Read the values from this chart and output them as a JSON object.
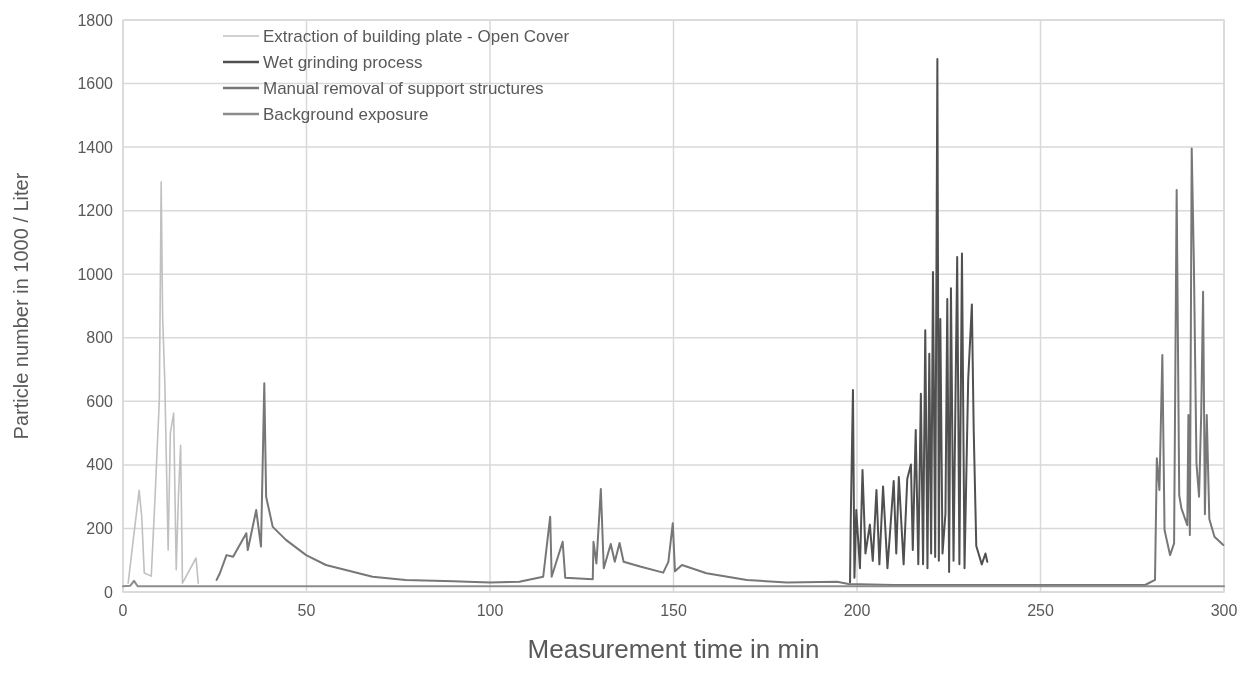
{
  "chart_data": {
    "type": "line",
    "xlabel": "Measurement time in min",
    "ylabel": "Particle number in 1000 / Liter",
    "xlim": [
      0,
      300
    ],
    "xticks": [
      0,
      50,
      100,
      150,
      200,
      250,
      300
    ],
    "ylim": [
      0,
      1800
    ],
    "yticks": [
      0,
      200,
      400,
      600,
      800,
      1000,
      1200,
      1400,
      1600,
      1800
    ],
    "grid": true,
    "legend": "top left",
    "line_style": "solid",
    "marker": "none",
    "series": [
      {
        "name": "Extraction of building plate - Open Cover",
        "color": "#c0c0c0",
        "x": [
          1.4,
          4.4,
          5.1,
          5.8,
          7.7,
          8.7,
          9.9,
          10.4,
          10.8,
          11.4,
          12.3,
          12.9,
          13.8,
          14.5,
          15.1,
          15.7,
          16.2,
          19.9,
          20.5
        ],
        "values": [
          28,
          320,
          237,
          60,
          50,
          290,
          604,
          1291,
          866,
          657,
          132,
          500,
          563,
          70,
          300,
          462,
          28,
          107,
          28
        ]
      },
      {
        "name": "Wet grinding process",
        "color": "#505050",
        "x": [
          198.1,
          198.3,
          198.9,
          199.3,
          199.8,
          200.8,
          201.5,
          202.3,
          203.5,
          204.3,
          205.3,
          206.1,
          207.1,
          208.3,
          210.0,
          210.7,
          211.4,
          212.7,
          213.7,
          214.7,
          215.2,
          216.0,
          216.7,
          217.4,
          218.0,
          218.6,
          219.2,
          219.7,
          220.2,
          220.7,
          221.3,
          221.9,
          222.3,
          222.7,
          223.3,
          224.1,
          224.6,
          225.1,
          225.6,
          226.3,
          227.3,
          227.9,
          228.6,
          229.3,
          230.3,
          231.3,
          231.8,
          232.5,
          234.0,
          235.0,
          235.5
        ],
        "values": [
          30,
          230,
          636,
          45,
          258,
          75,
          384,
          121,
          212,
          98,
          321,
          87,
          332,
          75,
          349,
          121,
          362,
          87,
          356,
          401,
          132,
          510,
          87,
          624,
          87,
          824,
          75,
          750,
          121,
          1007,
          110,
          1677,
          98,
          859,
          121,
          247,
          922,
          63,
          956,
          98,
          1054,
          87,
          1065,
          75,
          670,
          905,
          510,
          145,
          87,
          121,
          95
        ]
      },
      {
        "name": "Manual removal of support structures",
        "color": "#777777",
        "x": [
          25.5,
          26.4,
          28.2,
          30,
          33.6,
          34,
          36.3,
          37.6,
          38.5,
          39,
          40.8,
          44.4,
          49.9,
          55.3,
          62.6,
          68,
          77,
          90,
          100,
          108,
          114.5,
          116.4,
          116.8,
          119.8,
          120.5,
          128,
          128.2,
          129,
          130.2,
          131,
          132.9,
          134,
          135.3,
          136.4,
          140.9,
          147.2,
          148.6,
          149.8,
          150.4,
          152.3,
          159,
          170,
          180.9,
          194.6,
          197.7,
          210,
          230,
          250,
          265,
          278.5,
          281.2,
          281.7,
          282.4,
          283.2,
          283.8,
          285.3,
          286.4,
          287.1,
          287.8,
          288.4,
          290,
          290.3,
          290.7,
          291.2,
          291.8,
          292.5,
          293.2,
          293.8,
          294.3,
          294.8,
          295.3,
          296,
          297.4,
          299.8
        ],
        "values": [
          38,
          59,
          116,
          111,
          185,
          132,
          258,
          143,
          657,
          300,
          205,
          164,
          116,
          85,
          64,
          48,
          38,
          34,
          30,
          32,
          48,
          237,
          48,
          158,
          45,
          40,
          158,
          90,
          324,
          75,
          151,
          95,
          154,
          95,
          80,
          61,
          95,
          216,
          65,
          85,
          59,
          38,
          30,
          32,
          25,
          22,
          22,
          22,
          22,
          22,
          38,
          421,
          321,
          746,
          195,
          116,
          153,
          1265,
          305,
          263,
          210,
          557,
          179,
          1396,
          1029,
          405,
          300,
          563,
          945,
          245,
          557,
          230,
          174,
          148
        ]
      },
      {
        "name": "Background exposure",
        "color": "#8c8c8c",
        "x": [
          0,
          2,
          3,
          4,
          50,
          100,
          150,
          200,
          250,
          300
        ],
        "values": [
          18,
          20,
          35,
          18,
          18,
          18,
          18,
          18,
          18,
          18
        ]
      }
    ]
  }
}
